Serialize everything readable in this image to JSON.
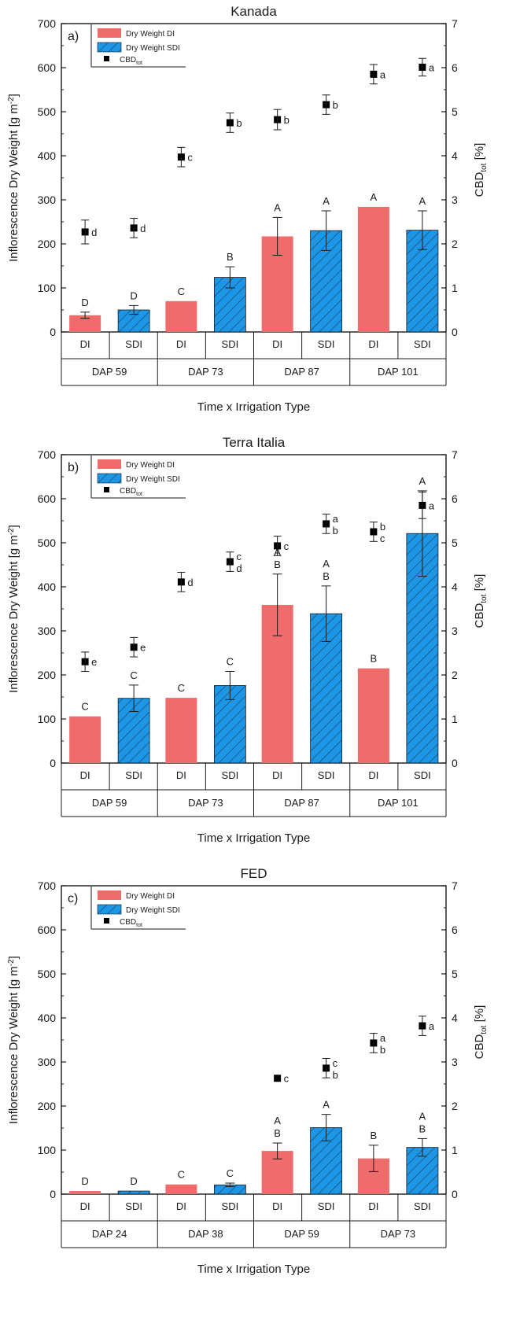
{
  "colors": {
    "di": "#f06b6b",
    "sdi": "#1e96e6",
    "axis": "#1a1a1a",
    "marker": "#000000"
  },
  "legend": {
    "dry_weight_di": "Dry Weight DI",
    "dry_weight_sdi": "Dry Weight SDI",
    "cbd_main": "CBD",
    "cbd_sub": "tot"
  },
  "axis_labels": {
    "left": "Inflorescence Dry Weight [g m",
    "left_sup": "-2",
    "left_close": "]",
    "right_main": "CBD",
    "right_sub": "tot",
    "right_unit": " [%]",
    "x": "Time x Irrigation Type"
  },
  "chart_data": [
    {
      "type": "bar",
      "panel": "a)",
      "title": "Kanada",
      "categories": [
        "DAP 59",
        "DAP 73",
        "DAP 87",
        "DAP 101"
      ],
      "groups": [
        "DI",
        "SDI"
      ],
      "ylim": [
        0,
        700
      ],
      "yticks": [
        0,
        100,
        200,
        300,
        400,
        500,
        600,
        700
      ],
      "y2lim": [
        0,
        7
      ],
      "y2ticks": [
        0,
        1,
        2,
        3,
        4,
        5,
        6,
        7
      ],
      "series": [
        {
          "name": "Dry Weight DI",
          "values": [
            38,
            70,
            217,
            284
          ],
          "err": [
            7,
            0,
            43,
            0
          ],
          "letters": [
            "D",
            "C",
            "A",
            "A"
          ]
        },
        {
          "name": "Dry Weight SDI",
          "values": [
            50,
            124,
            230,
            231
          ],
          "err": [
            10,
            24,
            45,
            44
          ],
          "letters": [
            "D",
            "B",
            "A",
            "A"
          ]
        },
        {
          "name": "CBD",
          "axis": "right",
          "values": [
            2.27,
            3.97,
            4.82,
            5.85
          ],
          "err": [
            0.27,
            0.22,
            0.23,
            0.22
          ],
          "letters": [
            "d",
            "c",
            "b",
            "a"
          ]
        },
        {
          "name": "CBD",
          "axis": "right",
          "values": [
            2.36,
            4.75,
            5.16,
            6.01
          ],
          "err": [
            0.22,
            0.22,
            0.22,
            0.2
          ],
          "letters": [
            "d",
            "b",
            "b",
            "a"
          ]
        }
      ]
    },
    {
      "type": "bar",
      "panel": "b)",
      "title": "Terra Italia",
      "categories": [
        "DAP 59",
        "DAP 73",
        "DAP 87",
        "DAP 101"
      ],
      "groups": [
        "DI",
        "SDI"
      ],
      "ylim": [
        0,
        700
      ],
      "yticks": [
        0,
        100,
        200,
        300,
        400,
        500,
        600,
        700
      ],
      "y2lim": [
        0,
        7
      ],
      "y2ticks": [
        0,
        1,
        2,
        3,
        4,
        5,
        6,
        7
      ],
      "series": [
        {
          "name": "Dry Weight DI",
          "values": [
            106,
            148,
            359,
            215
          ],
          "err": [
            0,
            0,
            70,
            0
          ],
          "letters": [
            "C",
            "C",
            "A\nB",
            "B"
          ]
        },
        {
          "name": "Dry Weight SDI",
          "values": [
            147,
            176,
            339,
            521
          ],
          "err": [
            30,
            32,
            63,
            97
          ],
          "letters": [
            "C",
            "C",
            "A\nB",
            "A"
          ]
        },
        {
          "name": "CBD",
          "axis": "right",
          "values": [
            2.3,
            4.11,
            4.93,
            5.25
          ],
          "err": [
            0.22,
            0.22,
            0.22,
            0.22
          ],
          "letters": [
            "e",
            "d",
            "c",
            "b\nc"
          ]
        },
        {
          "name": "CBD",
          "axis": "right",
          "values": [
            2.63,
            4.57,
            5.43,
            5.85
          ],
          "err": [
            0.22,
            0.22,
            0.22,
            0.3
          ],
          "letters": [
            "e",
            "c\nd",
            "a\nb",
            "a"
          ]
        }
      ]
    },
    {
      "type": "bar",
      "panel": "c)",
      "title": "FED",
      "categories": [
        "DAP 24",
        "DAP 38",
        "DAP 59",
        "DAP 73"
      ],
      "groups": [
        "DI",
        "SDI"
      ],
      "ylim": [
        0,
        700
      ],
      "yticks": [
        0,
        100,
        200,
        300,
        400,
        500,
        600,
        700
      ],
      "y2lim": [
        0,
        7
      ],
      "y2ticks": [
        0,
        1,
        2,
        3,
        4,
        5,
        6,
        7
      ],
      "series": [
        {
          "name": "Dry Weight DI",
          "values": [
            7,
            22,
            98,
            81
          ],
          "err": [
            0,
            0,
            18,
            30
          ],
          "letters": [
            "D",
            "C",
            "A\nB",
            "B"
          ]
        },
        {
          "name": "Dry Weight SDI",
          "values": [
            7,
            21,
            151,
            106
          ],
          "err": [
            0,
            4,
            30,
            20
          ],
          "letters": [
            "D",
            "C",
            "A",
            "A\nB"
          ]
        },
        {
          "name": "CBD",
          "axis": "right",
          "values": [
            0,
            0,
            2.63,
            3.43
          ],
          "err": [
            0,
            0,
            0,
            0.22
          ],
          "letters": [
            "",
            "",
            "c",
            "a\nb"
          ]
        },
        {
          "name": "CBD",
          "axis": "right",
          "values": [
            0,
            0,
            2.86,
            3.82
          ],
          "err": [
            0,
            0,
            0.22,
            0.22
          ],
          "letters": [
            "",
            "",
            "c\nb",
            "a"
          ]
        }
      ]
    }
  ]
}
